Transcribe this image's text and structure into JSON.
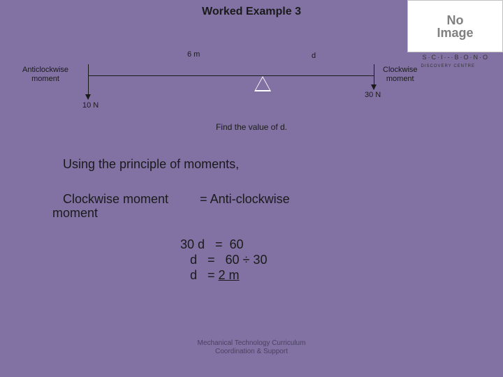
{
  "title": "Worked Example 3",
  "noImage": {
    "line1": "No",
    "line2": "Image",
    "sub1": "S·C·I·-·B·O·N·O",
    "sub2": "DISCOVERY CENTRE"
  },
  "diagram": {
    "dist_left": "6 m",
    "dist_right": "d",
    "label_acw_l1": "Anticlockwise",
    "label_acw_l2": "moment",
    "label_cw_l1": "Clockwise",
    "label_cw_l2": "moment",
    "force_left": "10 N",
    "force_right": "30 N"
  },
  "prompt": "Find the value of d.",
  "body": {
    "principle": "Using the principle of moments,",
    "eq_cw": "Clockwise moment         = Anti-clockwise",
    "eq_cw2": "moment",
    "eq_l1": "30 d   =  60",
    "eq_l2": "d   =   60 ÷ 30",
    "eq_l3a": "d   = ",
    "eq_l3b": "2 m"
  },
  "footer": {
    "l1": "Mechanical Technology Curriculum",
    "l2": "Coordination & Support"
  },
  "colors": {
    "bg": "#8272a4",
    "text": "#1a1a1a",
    "footer": "#4a4060"
  }
}
